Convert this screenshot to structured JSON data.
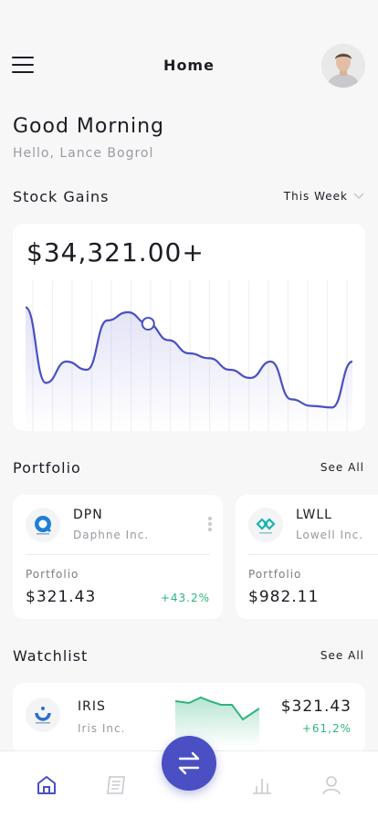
{
  "header": {
    "title": "Home"
  },
  "greeting": {
    "title": "Good Morning",
    "subtitle": "Hello, Lance Bogrol"
  },
  "stock_gains": {
    "title": "Stock Gains",
    "period": "This Week",
    "amount": "$34,321.00+"
  },
  "chart_data": {
    "type": "area",
    "color": "#4a4fc4",
    "grid": "vertical lines",
    "values": [
      68,
      22,
      35,
      30,
      60,
      65,
      58,
      48,
      40,
      37,
      30,
      25,
      35,
      12,
      8,
      7,
      35
    ]
  },
  "portfolio": {
    "title": "Portfolio",
    "see_all": "See All",
    "cards": [
      {
        "ticker": "DPN",
        "company": "Daphne Inc.",
        "label": "Portfolio",
        "value": "$321.43",
        "change": "+43.2%"
      },
      {
        "ticker": "LWLL",
        "company": "Lowell Inc.",
        "label": "Portfolio",
        "value": "$982.11",
        "change": ""
      }
    ]
  },
  "watchlist": {
    "title": "Watchlist",
    "see_all": "See All",
    "items": [
      {
        "ticker": "IRIS",
        "company": "Iris Inc.",
        "value": "$321.43",
        "change": "+61,2%"
      }
    ]
  },
  "colors": {
    "accent": "#4a4fc4",
    "positive": "#2fb47d",
    "background": "#f7f7f8"
  },
  "nav": {
    "items": [
      "home-icon",
      "news-icon",
      "transfer-icon",
      "stats-icon",
      "profile-icon"
    ]
  }
}
